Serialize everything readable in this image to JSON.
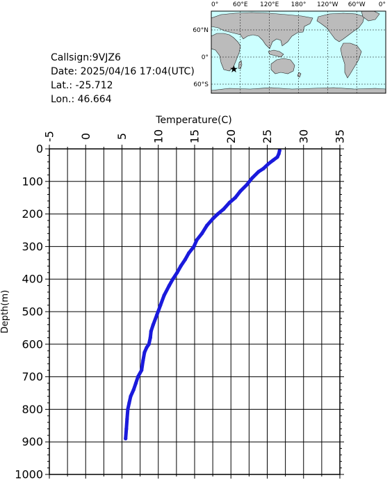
{
  "info": {
    "callsign": "Callsign:9VJZ6",
    "date": "Date:  2025/04/16 17:04(UTC)",
    "lat": "Lat.:  -25.712",
    "lon": "Lon.:   46.664"
  },
  "map": {
    "lon_labels": [
      "0°",
      "60°E",
      "120°E",
      "180°",
      "120°W",
      "60°W",
      "0°"
    ],
    "lat_labels": [
      "60°N",
      "0°",
      "60°S"
    ],
    "ocean_color": "#ccffff",
    "land_color": "#bbbbbb",
    "marker_color": "#ff0000",
    "marker_symbol": "star-marker"
  },
  "chart_data": {
    "type": "line",
    "title": "",
    "xlabel": "Temperature(C)",
    "ylabel": "Depth(m)",
    "xlim": [
      -5,
      35
    ],
    "ylim": [
      0,
      1000
    ],
    "y_inverted": true,
    "x_ticks": [
      "-5",
      "0",
      "5",
      "10",
      "15",
      "20",
      "25",
      "30",
      "35"
    ],
    "y_ticks": [
      "0",
      "100",
      "200",
      "300",
      "400",
      "500",
      "600",
      "700",
      "800",
      "900",
      "1000"
    ],
    "grid": true,
    "legend": "none",
    "series_color": "#1a1adc",
    "series": [
      {
        "x": [
          26.7,
          26.6,
          26.4,
          25.8,
          25.2,
          24.5,
          23.8,
          22.9,
          22.2,
          21.3,
          20.6,
          19.8,
          19.0,
          18.2,
          17.5,
          16.7,
          16.0,
          15.3,
          14.9,
          14.2,
          13.7,
          13.1,
          12.6,
          12.0,
          11.5,
          10.8,
          10.3,
          9.8,
          9.3,
          9.0,
          8.9,
          8.7,
          8.4,
          8.1,
          7.9,
          7.7,
          7.2,
          6.9,
          6.6,
          6.2,
          6.0,
          5.8,
          5.7,
          5.6,
          5.5
        ],
        "y": [
          5,
          15,
          25,
          35,
          45,
          60,
          70,
          90,
          110,
          130,
          150,
          165,
          185,
          200,
          215,
          235,
          260,
          280,
          300,
          320,
          340,
          360,
          380,
          400,
          420,
          450,
          480,
          510,
          540,
          560,
          580,
          600,
          610,
          625,
          650,
          680,
          700,
          720,
          740,
          760,
          780,
          800,
          830,
          860,
          890
        ]
      }
    ]
  }
}
